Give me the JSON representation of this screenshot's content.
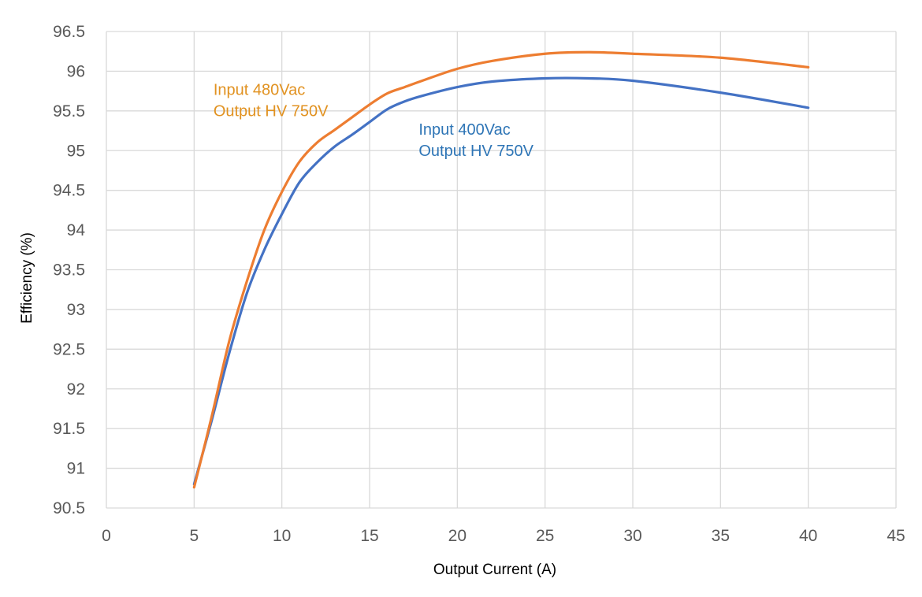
{
  "chart_data": {
    "type": "line",
    "title": "",
    "xlabel": "Output Current (A)",
    "ylabel": "Efficiency (%)",
    "xlim": [
      0,
      45
    ],
    "ylim": [
      90.5,
      96.5
    ],
    "xticks": [
      0,
      5,
      10,
      15,
      20,
      25,
      30,
      35,
      40,
      45
    ],
    "yticks": [
      90.5,
      91,
      91.5,
      92,
      92.5,
      93,
      93.5,
      94,
      94.5,
      95,
      95.5,
      96,
      96.5
    ],
    "grid": true,
    "legend": "none",
    "series": [
      {
        "name": "Input 400Vac Output HV 750V",
        "color": "#4472c4",
        "x": [
          5,
          6,
          7,
          8,
          9,
          10,
          11,
          12,
          13,
          14,
          15,
          16,
          17,
          18,
          20,
          22,
          25,
          27.5,
          30,
          35,
          40
        ],
        "y": [
          90.8,
          91.6,
          92.45,
          93.2,
          93.75,
          94.2,
          94.6,
          94.85,
          95.05,
          95.2,
          95.36,
          95.52,
          95.62,
          95.69,
          95.8,
          95.87,
          95.91,
          95.91,
          95.88,
          95.73,
          95.54
        ]
      },
      {
        "name": "Input 480Vac Output HV 750V",
        "color": "#ed7d31",
        "x": [
          5,
          6,
          7,
          8,
          9,
          10,
          11,
          12,
          13,
          14,
          15,
          16,
          17,
          18,
          20,
          22,
          25,
          27.5,
          30,
          35,
          40
        ],
        "y": [
          90.76,
          91.65,
          92.6,
          93.35,
          94.0,
          94.48,
          94.86,
          95.1,
          95.26,
          95.42,
          95.58,
          95.72,
          95.8,
          95.88,
          96.03,
          96.13,
          96.22,
          96.24,
          96.22,
          96.17,
          96.05
        ]
      }
    ],
    "annotations": [
      {
        "lines": [
          "Input 480Vac",
          "Output HV 750V"
        ],
        "color": "#e19221",
        "x": 6.1,
        "y": 95.7
      },
      {
        "lines": [
          "Input 400Vac",
          "Output HV 750V"
        ],
        "color": "#2e75b6",
        "x": 17.8,
        "y": 95.2
      }
    ]
  }
}
